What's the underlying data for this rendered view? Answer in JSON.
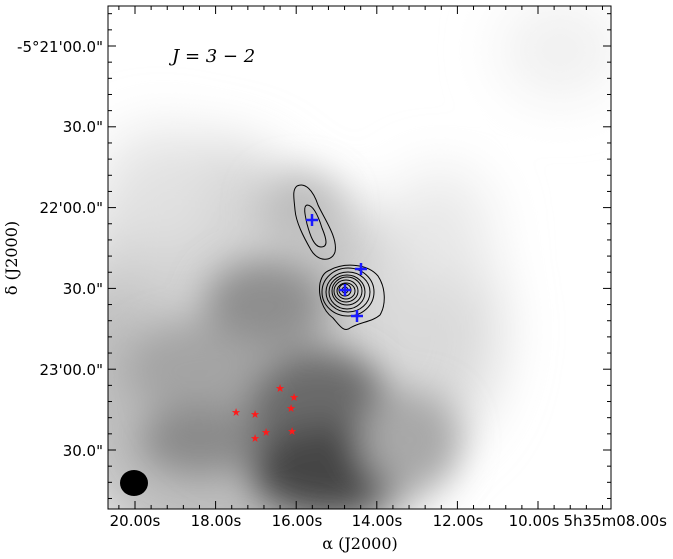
{
  "panel_label": "J = 3 − 2",
  "axes": {
    "xlabel": "α (J2000)",
    "ylabel": "δ (J2000)",
    "x_ticks": [
      "20.00s",
      "18.00s",
      "16.00s",
      "14.00s",
      "12.00s",
      "10.00s",
      "5h35m08.00s"
    ],
    "y_ticks": [
      "-5°21'00.0\"",
      "30.0\"",
      "22'00.0\"",
      "30.0\"",
      "23'00.0\"",
      "30.0\""
    ]
  },
  "markers": {
    "blue_crosses": 4,
    "red_stars": 10
  },
  "colors": {
    "grayscale_background": "#ffffff",
    "contours": "#000000",
    "blue_markers": "#1a1aff",
    "red_markers": "#ff1a1a"
  }
}
